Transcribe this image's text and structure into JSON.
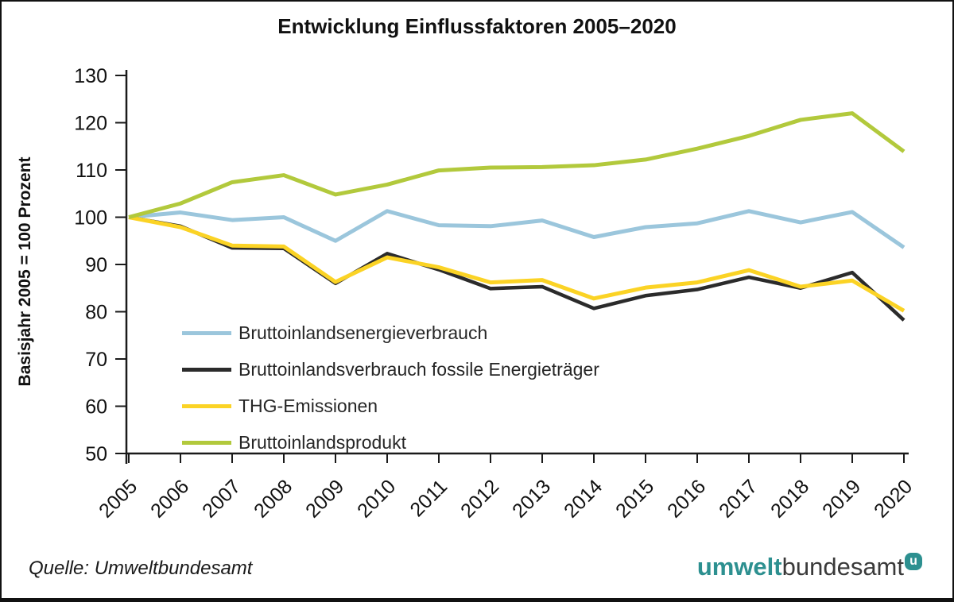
{
  "title": "Entwicklung Einflussfaktoren 2005–2020",
  "source": "Quelle: Umweltbundesamt",
  "logo": {
    "part1": "umwelt",
    "part2": "bundesamt",
    "badge": "u"
  },
  "colors": {
    "axis": "#1a1a1a",
    "teal": "#2d9090",
    "text": "#111111"
  },
  "chart_data": {
    "type": "line",
    "title": "Entwicklung Einflussfaktoren 2005–2020",
    "xlabel": "",
    "ylabel": "Basisjahr 2005 = 100 Prozent",
    "ylim": [
      50,
      130
    ],
    "yticks": [
      130,
      120,
      110,
      100,
      90,
      80,
      70,
      60,
      50
    ],
    "grid": false,
    "legend_position": "inside-lower-left",
    "categories": [
      "2005",
      "2006",
      "2007",
      "2008",
      "2009",
      "2010",
      "2011",
      "2012",
      "2013",
      "2014",
      "2015",
      "2016",
      "2017",
      "2018",
      "2019",
      "2020"
    ],
    "series": [
      {
        "name": "Bruttoinlandsenergieverbrauch",
        "color": "#9bc6dc",
        "values": [
          100,
          101.0,
          99.4,
          100.0,
          95.0,
          101.3,
          98.3,
          98.1,
          99.3,
          95.8,
          97.9,
          98.7,
          101.3,
          98.9,
          101.1,
          93.6
        ]
      },
      {
        "name": "Bruttoinlandsverbrauch fossile Energieträger",
        "color": "#2b2b2b",
        "values": [
          100,
          98.1,
          93.5,
          93.4,
          86.0,
          92.3,
          88.9,
          84.9,
          85.3,
          80.7,
          83.4,
          84.7,
          87.3,
          85.0,
          88.3,
          78.2
        ]
      },
      {
        "name": "THG-Emissionen",
        "color": "#fbd325",
        "values": [
          100,
          97.9,
          94.0,
          93.8,
          86.3,
          91.5,
          89.4,
          86.2,
          86.7,
          82.8,
          85.1,
          86.2,
          88.8,
          85.3,
          86.6,
          80.2
        ]
      },
      {
        "name": "Bruttoinlandsprodukt",
        "color": "#b2c93c",
        "values": [
          100,
          102.9,
          107.4,
          108.9,
          104.8,
          106.9,
          109.9,
          110.5,
          110.6,
          111.0,
          112.2,
          114.5,
          117.2,
          120.6,
          122.0,
          113.9
        ]
      }
    ]
  }
}
